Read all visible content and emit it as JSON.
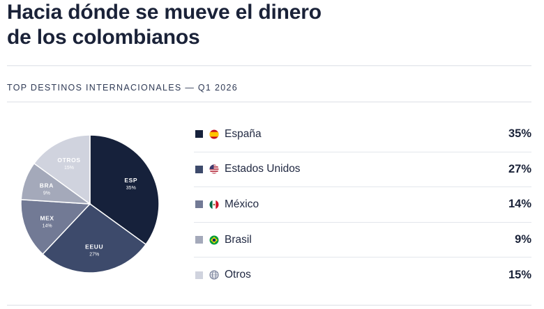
{
  "title_lines": [
    "Hacia dónde se mueve el dinero",
    "de los colombianos"
  ],
  "subtitle": "TOP DESTINOS INTERNACIONALES — Q1 2026",
  "chart_data": {
    "type": "pie",
    "slices": [
      {
        "code": "ESP",
        "name": "España",
        "value": 35,
        "pct_label": "35%",
        "color": "#16213b",
        "label_color": "#ffffff",
        "flag": "spain-flag-icon"
      },
      {
        "code": "EEUU",
        "name": "Estados Unidos",
        "value": 27,
        "pct_label": "27%",
        "color": "#3d4a6b",
        "label_color": "#ffffff",
        "flag": "usa-flag-icon"
      },
      {
        "code": "MEX",
        "name": "México",
        "value": 14,
        "pct_label": "14%",
        "color": "#727a95",
        "label_color": "#ffffff",
        "flag": "mexico-flag-icon"
      },
      {
        "code": "BRA",
        "name": "Brasil",
        "value": 9,
        "pct_label": "9%",
        "color": "#a4a9ba",
        "label_color": "#ffffff",
        "flag": "brazil-flag-icon"
      },
      {
        "code": "OTROS",
        "name": "Otros",
        "value": 15,
        "pct_label": "15%",
        "color": "#d0d3de",
        "label_color": "#ffffff",
        "flag": "globe-icon"
      }
    ]
  }
}
